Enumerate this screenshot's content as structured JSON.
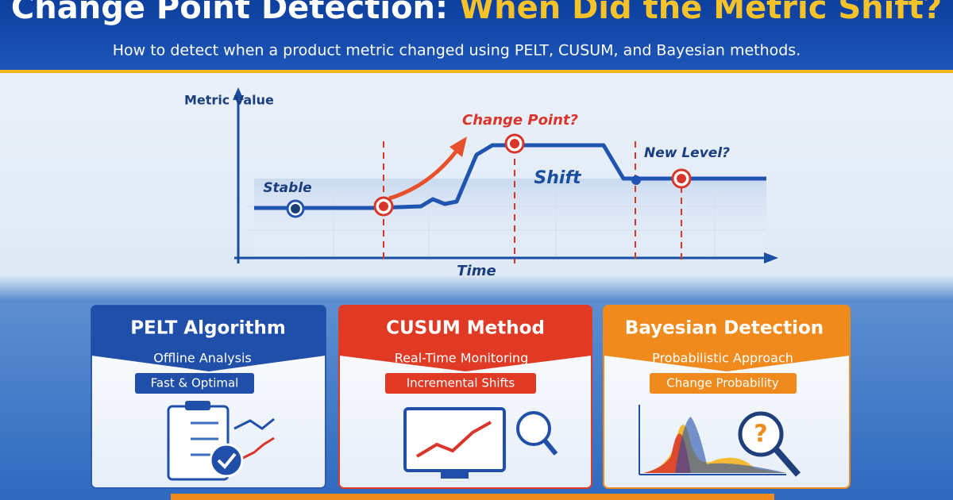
{
  "header": {
    "title_part1": "Change Point Detection:",
    "title_part2": "When Did the Metric Shift?",
    "subtitle": "How to detect when a product metric changed using PELT, CUSUM, and Bayesian methods."
  },
  "diagram": {
    "y_axis_label": "Metric Value",
    "x_axis_label": "Time",
    "annotations": {
      "stable": "Stable",
      "change_point": "Change Point?",
      "shift": "Shift",
      "new_level": "New Level?"
    }
  },
  "cards": [
    {
      "title": "PELT Algorithm",
      "line1": "Offline Analysis",
      "line2": "Fast & Optimal"
    },
    {
      "title": "CUSUM Method",
      "line1": "Real-Time Monitoring",
      "line2": "Incremental Shifts"
    },
    {
      "title": "Bayesian Detection",
      "line1": "Probabilistic Approach",
      "line2": "Change Probability"
    }
  ]
}
